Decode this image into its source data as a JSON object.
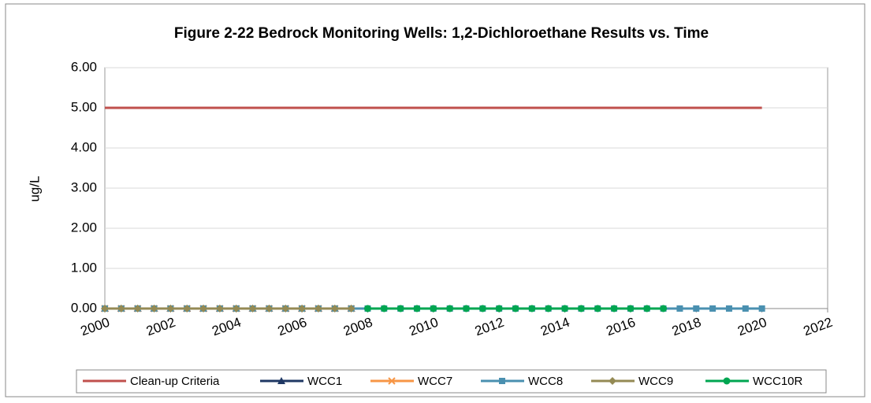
{
  "chart_data": {
    "type": "line",
    "title": "Figure 2-22 Bedrock Monitoring Wells: 1,2-Dichloroethane Results vs. Time",
    "ylabel": "ug/L",
    "xlim": [
      2000,
      2022
    ],
    "xticks": [
      2000,
      2002,
      2004,
      2006,
      2008,
      2010,
      2012,
      2014,
      2016,
      2018,
      2020,
      2022
    ],
    "ylim": [
      0,
      6
    ],
    "yticks": [
      {
        "value": 0,
        "label": "0.00"
      },
      {
        "value": 1,
        "label": "1.00"
      },
      {
        "value": 2,
        "label": "2.00"
      },
      {
        "value": 3,
        "label": "3.00"
      },
      {
        "value": 4,
        "label": "4.00"
      },
      {
        "value": 5,
        "label": "5.00"
      },
      {
        "value": 6,
        "label": "6.00"
      }
    ],
    "grid": true,
    "legend": "bottom",
    "series": [
      {
        "name": "Clean-up Criteria",
        "color": "#c0504d",
        "marker": "none",
        "x": [
          2000,
          2020
        ],
        "values": [
          5,
          5
        ]
      },
      {
        "name": "WCC1",
        "color": "#1f3864",
        "marker": "triangle",
        "x": [
          2000,
          2000.5,
          2001,
          2001.5,
          2002,
          2002.5,
          2003,
          2003.5,
          2004,
          2004.5,
          2005,
          2005.5,
          2006,
          2006.5,
          2007,
          2007.5
        ],
        "values": [
          0,
          0,
          0,
          0,
          0,
          0,
          0,
          0,
          0,
          0,
          0,
          0,
          0,
          0,
          0,
          0
        ]
      },
      {
        "name": "WCC7",
        "color": "#f79646",
        "marker": "x",
        "x": [
          2000,
          2000.5,
          2001,
          2001.5,
          2002,
          2002.5,
          2003,
          2003.5,
          2004,
          2004.5,
          2005,
          2005.5,
          2006,
          2006.5,
          2007,
          2007.5
        ],
        "values": [
          0,
          0,
          0,
          0,
          0,
          0,
          0,
          0,
          0,
          0,
          0,
          0,
          0,
          0,
          0,
          0
        ]
      },
      {
        "name": "WCC8",
        "color": "#4a90b0",
        "marker": "square",
        "x": [
          2000,
          2000.5,
          2001,
          2001.5,
          2002,
          2002.5,
          2003,
          2003.5,
          2004,
          2004.5,
          2005,
          2005.5,
          2006,
          2006.5,
          2007,
          2007.5,
          2008,
          2008.5,
          2009,
          2009.5,
          2010,
          2010.5,
          2011,
          2011.5,
          2012,
          2012.5,
          2013,
          2013.5,
          2014,
          2014.5,
          2015,
          2015.5,
          2016,
          2016.5,
          2017,
          2017.5,
          2018,
          2018.5,
          2019,
          2019.5,
          2020
        ],
        "values": [
          0,
          0,
          0,
          0,
          0,
          0,
          0,
          0,
          0,
          0,
          0,
          0,
          0,
          0,
          0,
          0,
          0,
          0,
          0,
          0,
          0,
          0,
          0,
          0,
          0,
          0,
          0,
          0,
          0,
          0,
          0,
          0,
          0,
          0,
          0,
          0,
          0,
          0,
          0,
          0,
          0
        ]
      },
      {
        "name": "WCC9",
        "color": "#948a54",
        "marker": "diamond",
        "x": [
          2000,
          2000.5,
          2001,
          2001.5,
          2002,
          2002.5,
          2003,
          2003.5,
          2004,
          2004.5,
          2005,
          2005.5,
          2006,
          2006.5,
          2007,
          2007.5
        ],
        "values": [
          0,
          0,
          0,
          0,
          0,
          0,
          0,
          0,
          0,
          0,
          0,
          0,
          0,
          0,
          0,
          0
        ]
      },
      {
        "name": "WCC10R",
        "color": "#00a651",
        "marker": "circle",
        "x": [
          2008,
          2008.5,
          2009,
          2009.5,
          2010,
          2010.5,
          2011,
          2011.5,
          2012,
          2012.5,
          2013,
          2013.5,
          2014,
          2014.5,
          2015,
          2015.5,
          2016,
          2016.5,
          2017
        ],
        "values": [
          0,
          0,
          0,
          0,
          0,
          0,
          0,
          0,
          0,
          0,
          0,
          0,
          0,
          0,
          0,
          0,
          0,
          0,
          0
        ]
      }
    ]
  }
}
